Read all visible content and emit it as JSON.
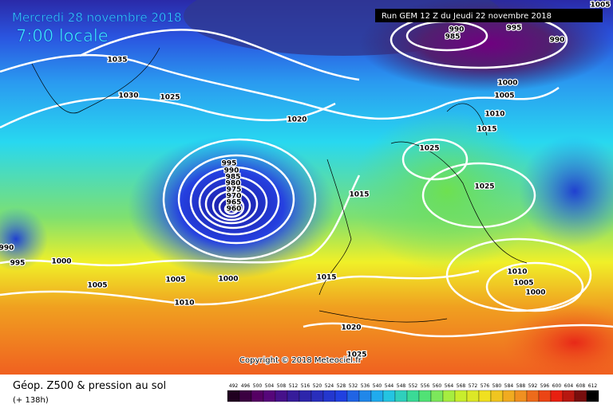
{
  "header": {
    "date": "Mercredi 28 novembre 2018",
    "time": "7:00 locale",
    "run": "Run GEM 12 Z du Jeudi 22 novembre 2018"
  },
  "copyright": "Copyright © 2018 Meteociel.fr",
  "footer": {
    "title": "Géop. Z500 & pression au sol",
    "lead": "(+ 138h)"
  },
  "scale": {
    "labels": [
      492,
      496,
      500,
      504,
      508,
      512,
      516,
      520,
      524,
      528,
      532,
      536,
      540,
      544,
      548,
      552,
      556,
      560,
      564,
      568,
      572,
      576,
      580,
      584,
      588,
      592,
      596,
      600,
      604,
      608,
      612
    ]
  },
  "isobar_labels": [
    "1005",
    "990",
    "985",
    "995",
    "990",
    "1035",
    "1030",
    "1025",
    "1000",
    "1005",
    "1010",
    "1015",
    "1020",
    "1025",
    "1025",
    "995",
    "990",
    "985",
    "980",
    "975",
    "970",
    "965",
    "960",
    "1015",
    "990",
    "995",
    "1000",
    "1005",
    "1005",
    "1000",
    "1015",
    "1010",
    "1005",
    "1000",
    "1010",
    "1020",
    "1025"
  ]
}
